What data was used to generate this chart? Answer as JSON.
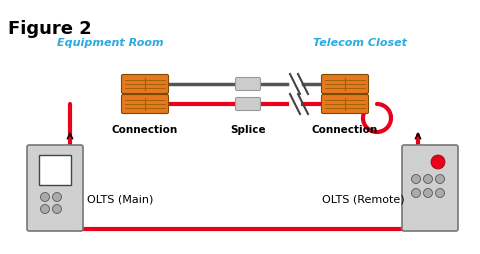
{
  "title": "Figure 2",
  "label_eq_room": "Equipment Room",
  "label_telecom": "Telecom Closet",
  "label_connection_left": "Connection",
  "label_connection_right": "Connection",
  "label_splice": "Splice",
  "label_olts_main": "OLTS (Main)",
  "label_olts_remote": "OLTS (Remote)",
  "bg_color": "#ffffff",
  "title_color": "#000000",
  "cyan_color": "#29abe2",
  "red_color": "#e8001c",
  "orange_color": "#e87820",
  "gray_line": "#555555",
  "splice_gray": "#bbbbbb",
  "device_gray": "#d0d0d0",
  "device_border": "#777777",
  "fig_width": 4.8,
  "fig_height": 2.55,
  "dpi": 100
}
